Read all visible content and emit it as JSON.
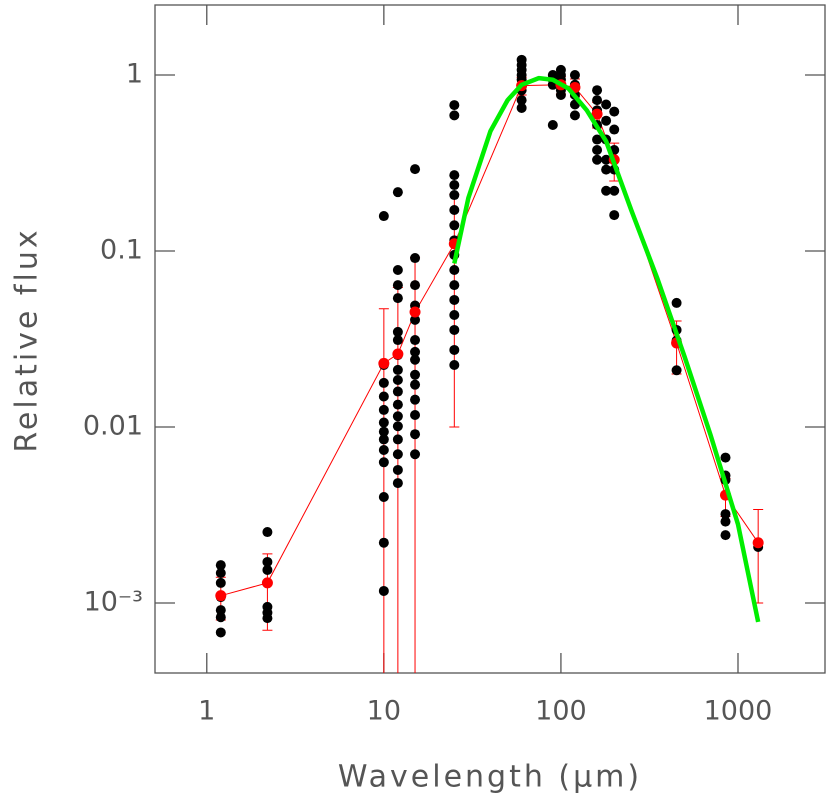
{
  "chart_data": {
    "type": "scatter",
    "xlabel": "Wavelength (μm)",
    "ylabel": "Relative flux",
    "xscale": "log",
    "yscale": "log",
    "xlim": [
      0.51,
      3100
    ],
    "ylim": [
      0.0004,
      2.5
    ],
    "xticks": [
      1,
      10,
      100,
      1000
    ],
    "yticks": [
      1,
      0.1,
      0.01,
      {
        "value": 0.001,
        "label": "10⁻³"
      }
    ],
    "series": [
      {
        "color": "#000000",
        "x": [
          1.2,
          1.2,
          1.2,
          1.2,
          1.2,
          1.2,
          1.2,
          2.2,
          2.2,
          2.2,
          2.2,
          2.2,
          2.2,
          2.2,
          10,
          10,
          10,
          10,
          10,
          10,
          10,
          10,
          10,
          10,
          10,
          10,
          10,
          12,
          12,
          12,
          12,
          12,
          12,
          12,
          12,
          12,
          12,
          12,
          12,
          12,
          12,
          12,
          12,
          12,
          15,
          15,
          15,
          15,
          15,
          15,
          15,
          15,
          15,
          15,
          15,
          15,
          15,
          15,
          25,
          25,
          25,
          25,
          25,
          25,
          25,
          25,
          25,
          25,
          25,
          25,
          25,
          25,
          25,
          25,
          60,
          60,
          60,
          60,
          60,
          60,
          60,
          60,
          90,
          90,
          90,
          90,
          100,
          100,
          100,
          100,
          100,
          120,
          120,
          120,
          120,
          120,
          160,
          160,
          160,
          160,
          160,
          160,
          160,
          180,
          180,
          180,
          180,
          180,
          180,
          200,
          200,
          200,
          200,
          200,
          200,
          450,
          450,
          450,
          450,
          850,
          850,
          850,
          850,
          850,
          850,
          1300
        ],
        "values": [
          0.00164,
          0.00148,
          0.0013,
          0.00108,
          0.00091,
          0.00083,
          0.00068,
          0.00253,
          0.00171,
          0.00154,
          0.0013,
          0.00095,
          0.00088,
          0.00082,
          0.158,
          0.0225,
          0.0178,
          0.0149,
          0.0125,
          0.0106,
          0.0094,
          0.0085,
          0.0074,
          0.0063,
          0.004,
          0.0022,
          0.00117,
          0.216,
          0.078,
          0.064,
          0.054,
          0.0347,
          0.0312,
          0.0256,
          0.0211,
          0.0185,
          0.0159,
          0.0134,
          0.0115,
          0.0101,
          0.0085,
          0.007,
          0.0057,
          0.0048,
          0.292,
          0.0912,
          0.064,
          0.049,
          0.0406,
          0.0312,
          0.0267,
          0.0241,
          0.0198,
          0.0174,
          0.0143,
          0.0117,
          0.0091,
          0.007,
          0.675,
          0.59,
          0.27,
          0.237,
          0.208,
          0.171,
          0.14,
          0.115,
          0.095,
          0.078,
          0.064,
          0.0527,
          0.0433,
          0.0356,
          0.0274,
          0.0225,
          1.22,
          1.14,
          1.07,
          1,
          0.94,
          0.82,
          0.72,
          0.65,
          1,
          0.94,
          0.88,
          0.52,
          1.07,
          1,
          0.94,
          0.82,
          0.77,
          1,
          0.88,
          0.77,
          0.68,
          0.59,
          0.82,
          0.72,
          0.63,
          0.52,
          0.43,
          0.375,
          0.33,
          0.68,
          0.55,
          0.43,
          0.33,
          0.29,
          0.22,
          0.62,
          0.49,
          0.375,
          0.29,
          0.22,
          0.16,
          0.0507,
          0.0356,
          0.031,
          0.021,
          0.0067,
          0.0053,
          0.005,
          0.0032,
          0.0029,
          0.00243,
          0.00208
        ]
      },
      {
        "color": "#ff0000",
        "line": true,
        "x": [
          1.2,
          2.2,
          10,
          12,
          15,
          25,
          60,
          100,
          120,
          160,
          200,
          450,
          850,
          1300
        ],
        "values": [
          0.0011,
          0.0013,
          0.023,
          0.026,
          0.045,
          0.11,
          0.87,
          0.88,
          0.85,
          0.6,
          0.33,
          0.03,
          0.0041,
          0.0022
        ],
        "errors": [
          0.0003,
          0.0006,
          0.024,
          0.036,
          0.047,
          0.1,
          0.1,
          0.1,
          0.1,
          0.1,
          0.08,
          0.01,
          0.001,
          0.0012
        ]
      },
      {
        "color": "#00ee00",
        "line": true,
        "markers": false,
        "x": [
          25,
          30,
          40,
          50,
          60,
          75,
          90,
          110,
          140,
          180,
          250,
          350,
          500,
          700,
          1000,
          1300
        ],
        "values": [
          0.085,
          0.2,
          0.48,
          0.72,
          0.88,
          0.96,
          0.94,
          0.84,
          0.63,
          0.42,
          0.17,
          0.07,
          0.025,
          0.009,
          0.0028,
          0.00078
        ]
      }
    ]
  }
}
